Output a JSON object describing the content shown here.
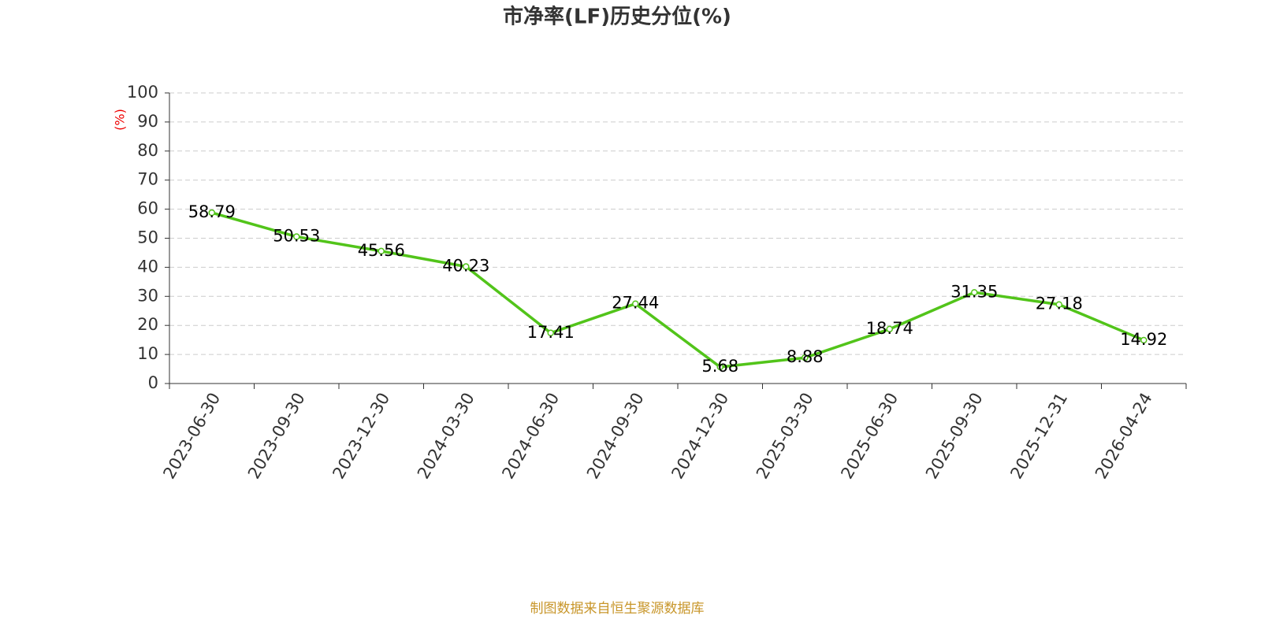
{
  "chart_data": {
    "type": "line",
    "title": "市净率(LF)历史分位(%)",
    "y_label": "(%)",
    "source": "制图数据来自恒生聚源数据库",
    "categories": [
      "2023-06-30",
      "2023-09-30",
      "2023-12-30",
      "2024-03-30",
      "2024-06-30",
      "2024-09-30",
      "2024-12-30",
      "2025-03-30",
      "2025-06-30",
      "2025-09-30",
      "2025-12-31",
      "2026-04-24"
    ],
    "values": [
      58.79,
      50.53,
      45.56,
      40.23,
      17.41,
      27.44,
      5.68,
      8.88,
      18.74,
      31.35,
      27.18,
      14.92
    ],
    "color": "#52c41a",
    "ylim": [
      0,
      100
    ],
    "yticks": [
      0,
      10,
      20,
      30,
      40,
      50,
      60,
      70,
      80,
      90,
      100
    ],
    "grid": true
  }
}
